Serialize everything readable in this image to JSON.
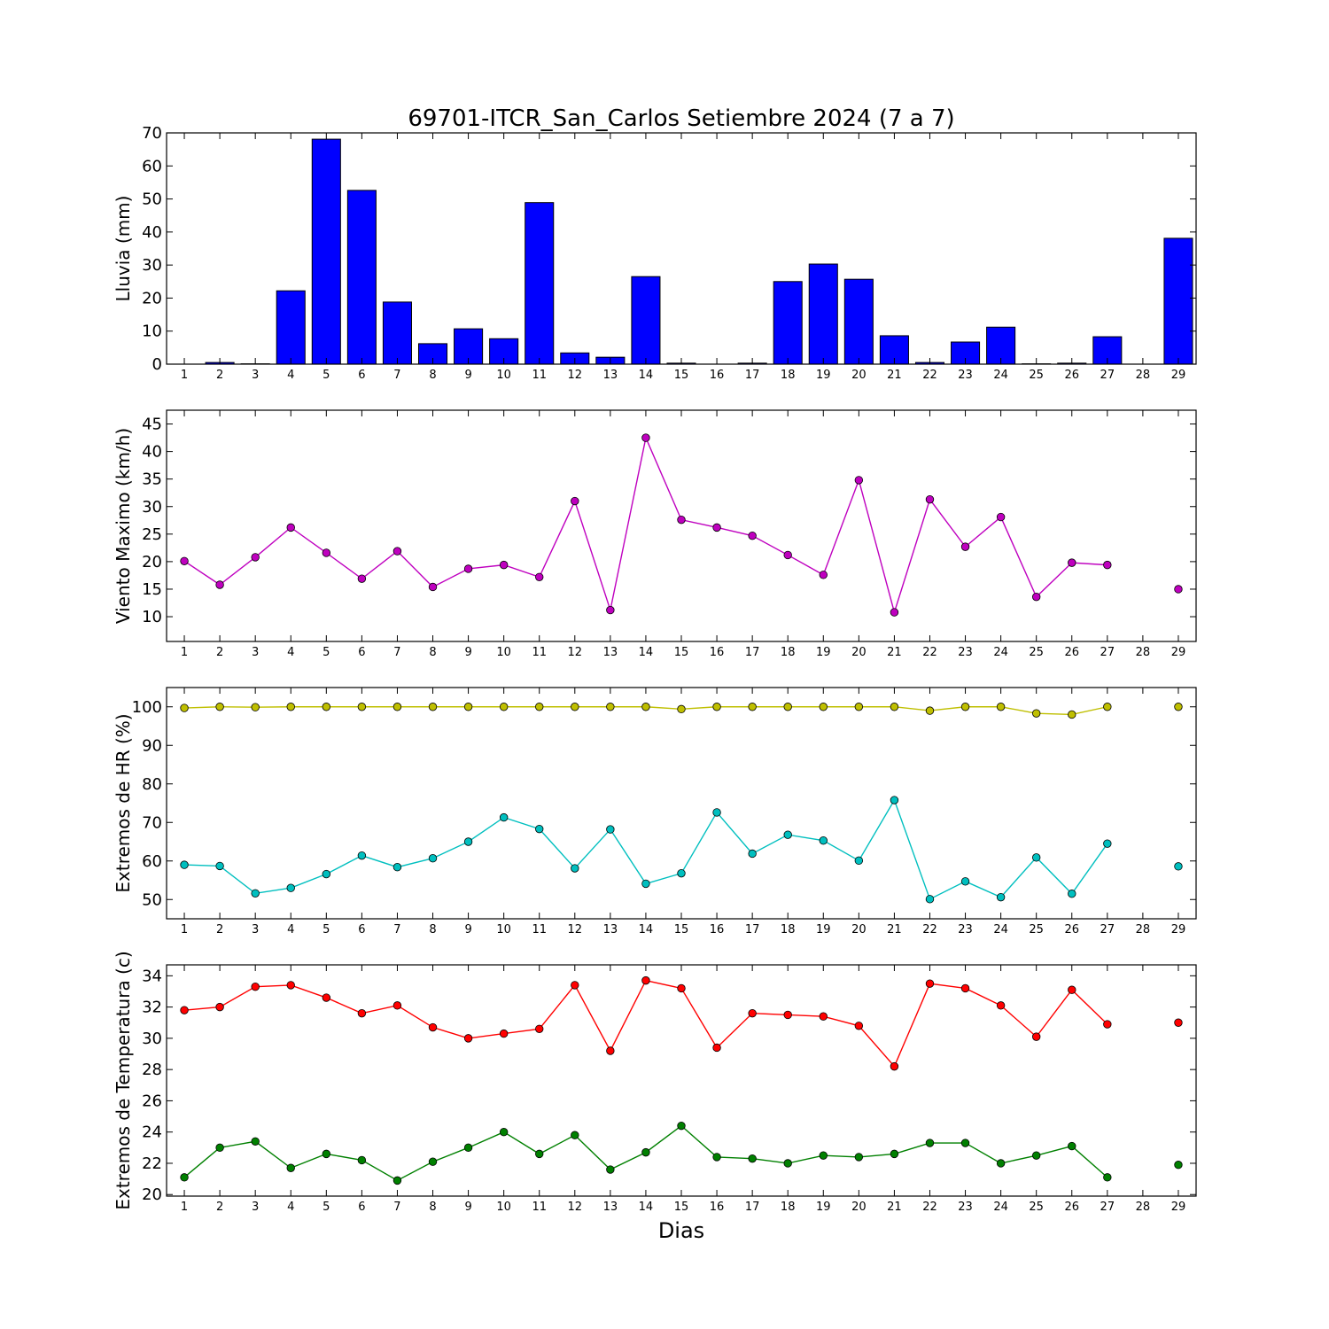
{
  "figure": {
    "title": "69701-ITCR_San_Carlos Setiembre 2024  (7 a 7)",
    "xlabel": "Dias"
  },
  "chart_data": [
    {
      "type": "bar",
      "ylabel": "Lluvia (mm)",
      "ylim": [
        0,
        70
      ],
      "yticks": [
        0,
        10,
        20,
        30,
        40,
        50,
        60,
        70
      ],
      "xlim": [
        0.5,
        29.5
      ],
      "categories": [
        1,
        2,
        3,
        4,
        5,
        6,
        7,
        8,
        9,
        10,
        11,
        12,
        13,
        14,
        15,
        16,
        17,
        18,
        19,
        20,
        21,
        22,
        23,
        24,
        25,
        26,
        27,
        28,
        29
      ],
      "values": [
        0,
        0.5,
        0.1,
        22.2,
        68.1,
        52.6,
        18.8,
        6.2,
        10.7,
        7.7,
        48.9,
        3.4,
        2.1,
        26.5,
        0.3,
        0,
        0.3,
        25,
        30.3,
        25.7,
        8.6,
        0.5,
        6.7,
        11.2,
        0.1,
        0.3,
        8.3,
        null,
        38.1
      ],
      "color": "#0000ff",
      "grid": false
    },
    {
      "type": "line",
      "ylabel": "Viento Maximo (km/h)",
      "ylim": [
        5.5,
        47.5
      ],
      "yticks": [
        10,
        15,
        20,
        25,
        30,
        35,
        40,
        45
      ],
      "xlim": [
        0.5,
        29.5
      ],
      "categories": [
        1,
        2,
        3,
        4,
        5,
        6,
        7,
        8,
        9,
        10,
        11,
        12,
        13,
        14,
        15,
        16,
        17,
        18,
        19,
        20,
        21,
        22,
        23,
        24,
        25,
        26,
        27,
        28,
        29
      ],
      "series": [
        {
          "color": "#bf00bf",
          "values": [
            20.1,
            15.8,
            20.8,
            26.2,
            21.6,
            16.9,
            21.9,
            15.4,
            18.7,
            19.4,
            17.2,
            31,
            11.2,
            42.5,
            27.6,
            26.2,
            24.7,
            21.2,
            17.6,
            34.8,
            10.8,
            31.3,
            22.7,
            28.1,
            13.6,
            19.8,
            19.4,
            null,
            15
          ]
        }
      ],
      "grid": false
    },
    {
      "type": "line",
      "ylabel": "Extremos de HR (%)",
      "ylim": [
        45,
        105
      ],
      "yticks": [
        50,
        60,
        70,
        80,
        90,
        100
      ],
      "xlim": [
        0.5,
        29.5
      ],
      "categories": [
        1,
        2,
        3,
        4,
        5,
        6,
        7,
        8,
        9,
        10,
        11,
        12,
        13,
        14,
        15,
        16,
        17,
        18,
        19,
        20,
        21,
        22,
        23,
        24,
        25,
        26,
        27,
        28,
        29
      ],
      "series": [
        {
          "color": "#bfbf00",
          "values": [
            99.7,
            100,
            99.9,
            100,
            100,
            100,
            100,
            100,
            100,
            100,
            100,
            100,
            100,
            100,
            99.4,
            100,
            100,
            100,
            100,
            100,
            100,
            99,
            100,
            100,
            98.3,
            98,
            100,
            null,
            100
          ]
        },
        {
          "color": "#00bfbf",
          "values": [
            59,
            58.7,
            51.6,
            53,
            56.6,
            61.4,
            58.4,
            60.7,
            65,
            71.3,
            68.3,
            58.1,
            68.2,
            54.1,
            56.8,
            72.6,
            61.9,
            66.8,
            65.3,
            60.1,
            75.8,
            50.1,
            54.7,
            50.6,
            60.9,
            51.5,
            64.5,
            null,
            58.6
          ]
        }
      ],
      "grid": false
    },
    {
      "type": "line",
      "ylabel": "Extremos de Temperatura (c)",
      "ylim": [
        19.9,
        34.7
      ],
      "yticks": [
        20,
        22,
        24,
        26,
        28,
        30,
        32,
        34
      ],
      "xlim": [
        0.5,
        29.5
      ],
      "categories": [
        1,
        2,
        3,
        4,
        5,
        6,
        7,
        8,
        9,
        10,
        11,
        12,
        13,
        14,
        15,
        16,
        17,
        18,
        19,
        20,
        21,
        22,
        23,
        24,
        25,
        26,
        27,
        28,
        29
      ],
      "series": [
        {
          "color": "#ff0000",
          "values": [
            31.8,
            32,
            33.3,
            33.4,
            32.6,
            31.6,
            32.1,
            30.7,
            30,
            30.3,
            30.6,
            33.4,
            29.2,
            33.7,
            33.2,
            29.4,
            31.6,
            31.5,
            31.4,
            30.8,
            28.2,
            33.5,
            33.2,
            32.1,
            30.1,
            33.1,
            30.9,
            null,
            31
          ]
        },
        {
          "color": "#008000",
          "values": [
            21.1,
            23,
            23.4,
            21.7,
            22.6,
            22.2,
            20.9,
            22.1,
            23,
            24,
            22.6,
            23.8,
            21.6,
            22.7,
            24.4,
            22.4,
            22.3,
            22,
            22.5,
            22.4,
            22.6,
            23.3,
            23.3,
            22,
            22.5,
            23.1,
            21.1,
            null,
            21.9
          ]
        }
      ],
      "grid": false
    }
  ]
}
